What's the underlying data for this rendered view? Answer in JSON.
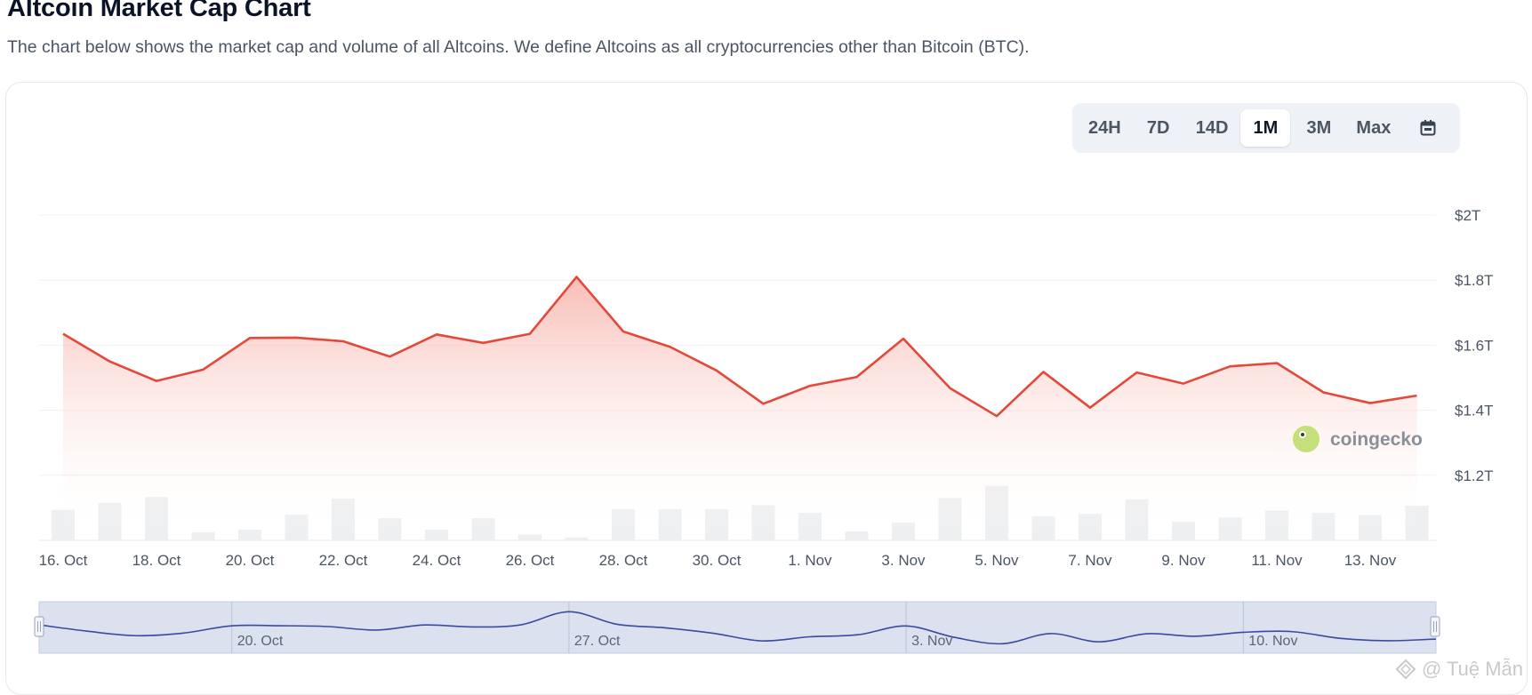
{
  "header": {
    "title": "Altcoin Market Cap Chart",
    "subtitle": "The chart below shows the market cap and volume of all Altcoins. We define Altcoins as all cryptocurrencies other than Bitcoin (BTC)."
  },
  "range_selector": {
    "options": [
      "24H",
      "7D",
      "14D",
      "1M",
      "3M",
      "Max"
    ],
    "selected": "1M",
    "calendar_icon": "calendar-icon"
  },
  "brand_watermark": {
    "text": "coingecko",
    "icon": "gecko-logo-icon"
  },
  "footer_watermark": {
    "text": "@ Tuệ Mẫn",
    "icon": "diamond-logo-icon"
  },
  "colors": {
    "line": "#e4483a",
    "area_top": "#f8b5ad",
    "volume_bar": "#eeeff1",
    "grid": "#eef0f3",
    "navigator_fill": "#dbe1ee",
    "navigator_line": "#3a4a9e"
  },
  "chart_data": {
    "type": "line",
    "title": "",
    "xlabel": "",
    "ylabel": "",
    "ylim": [
      1000,
      2000
    ],
    "y_unit": "billion USD",
    "y_ticks": [
      {
        "value": 1200,
        "label": "$1.2T"
      },
      {
        "value": 1400,
        "label": "$1.4T"
      },
      {
        "value": 1600,
        "label": "$1.6T"
      },
      {
        "value": 1800,
        "label": "$1.8T"
      },
      {
        "value": 2000,
        "label": "$2T"
      }
    ],
    "x_ticks": [
      {
        "date": "2023-10-16",
        "label": "16. Oct"
      },
      {
        "date": "2023-10-18",
        "label": "18. Oct"
      },
      {
        "date": "2023-10-20",
        "label": "20. Oct"
      },
      {
        "date": "2023-10-22",
        "label": "22. Oct"
      },
      {
        "date": "2023-10-24",
        "label": "24. Oct"
      },
      {
        "date": "2023-10-26",
        "label": "26. Oct"
      },
      {
        "date": "2023-10-28",
        "label": "28. Oct"
      },
      {
        "date": "2023-10-30",
        "label": "30. Oct"
      },
      {
        "date": "2023-11-01",
        "label": "1. Nov"
      },
      {
        "date": "2023-11-03",
        "label": "3. Nov"
      },
      {
        "date": "2023-11-05",
        "label": "5. Nov"
      },
      {
        "date": "2023-11-07",
        "label": "7. Nov"
      },
      {
        "date": "2023-11-09",
        "label": "9. Nov"
      },
      {
        "date": "2023-11-11",
        "label": "11. Nov"
      },
      {
        "date": "2023-11-13",
        "label": "13. Nov"
      }
    ],
    "x": [
      "2023-10-16",
      "2023-10-17",
      "2023-10-18",
      "2023-10-19",
      "2023-10-20",
      "2023-10-21",
      "2023-10-22",
      "2023-10-23",
      "2023-10-24",
      "2023-10-25",
      "2023-10-26",
      "2023-10-27",
      "2023-10-28",
      "2023-10-29",
      "2023-10-30",
      "2023-10-31",
      "2023-11-01",
      "2023-11-02",
      "2023-11-03",
      "2023-11-04",
      "2023-11-05",
      "2023-11-06",
      "2023-11-07",
      "2023-11-08",
      "2023-11-09",
      "2023-11-10",
      "2023-11-11",
      "2023-11-12",
      "2023-11-13",
      "2023-11-14"
    ],
    "series": [
      {
        "type": "line",
        "values": [
          1635,
          1550,
          1490,
          1525,
          1622,
          1623,
          1612,
          1565,
          1633,
          1607,
          1635,
          1810,
          1642,
          1595,
          1522,
          1420,
          1475,
          1502,
          1620,
          1468,
          1382,
          1518,
          1408,
          1516,
          1482,
          1535,
          1545,
          1455,
          1422,
          1445
        ]
      },
      {
        "type": "bar",
        "values": [
          52,
          64,
          74,
          14,
          18,
          44,
          71,
          38,
          18,
          38,
          10,
          5,
          53,
          53,
          53,
          60,
          47,
          15,
          30,
          72,
          93,
          41,
          45,
          70,
          32,
          39,
          51,
          47,
          43,
          59
        ],
        "note_unit": "relative"
      }
    ],
    "navigator": {
      "labels": [
        {
          "date": "2023-10-20",
          "label": "20. Oct"
        },
        {
          "date": "2023-10-27",
          "label": "27. Oct"
        },
        {
          "date": "2023-11-03",
          "label": "3. Nov"
        },
        {
          "date": "2023-11-10",
          "label": "10. Nov"
        }
      ]
    },
    "grid": true,
    "legend": "none"
  }
}
